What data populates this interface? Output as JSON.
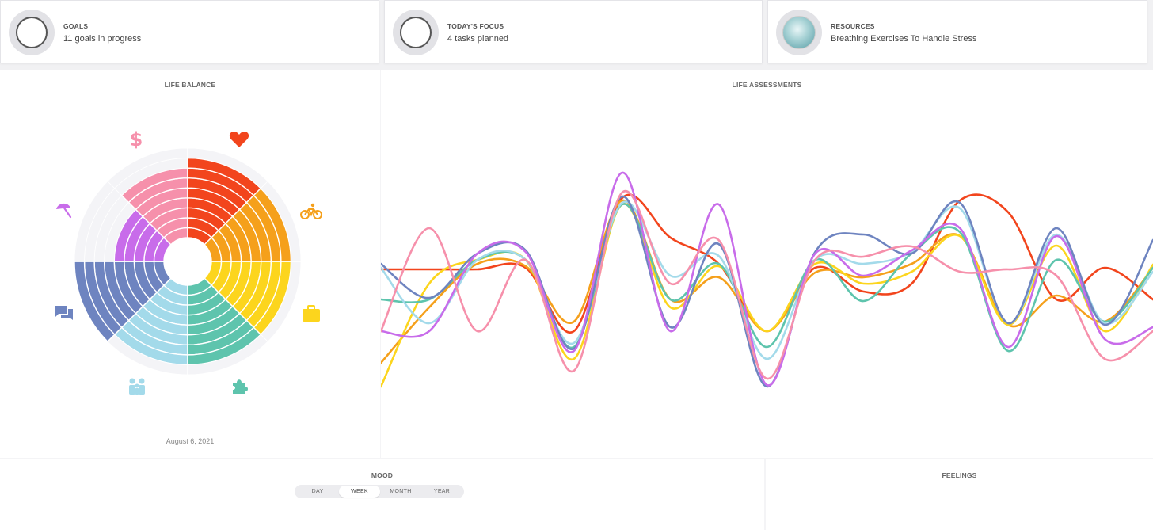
{
  "cards": [
    {
      "label": "GOALS",
      "value": "11 goals in progress"
    },
    {
      "label": "TODAY'S FOCUS",
      "value": "4 tasks planned"
    },
    {
      "label": "RESOURCES",
      "value": "Breathing Exercises To Handle Stress"
    }
  ],
  "life_balance": {
    "title": "LIFE BALANCE",
    "date": "August 6, 2021",
    "icons": [
      "dollar-icon",
      "heart-icon",
      "bicycle-icon",
      "briefcase-icon",
      "puzzle-icon",
      "family-icon",
      "chat-icon",
      "umbrella-icon"
    ],
    "colors": {
      "finance": "#f690ab",
      "health": "#f2451d",
      "fitness": "#f5a01b",
      "career": "#fcd51d",
      "growth": "#5ec4ad",
      "family": "#a3daea",
      "social": "#6e84c0",
      "fun": "#c86cea"
    }
  },
  "life_assessments": {
    "title": "LIFE ASSESSMENTS"
  },
  "mood": {
    "title": "MOOD",
    "tabs": [
      "DAY",
      "WEEK",
      "MONTH",
      "YEAR"
    ],
    "active_tab": "WEEK"
  },
  "feelings": {
    "title": "FEELINGS"
  }
}
